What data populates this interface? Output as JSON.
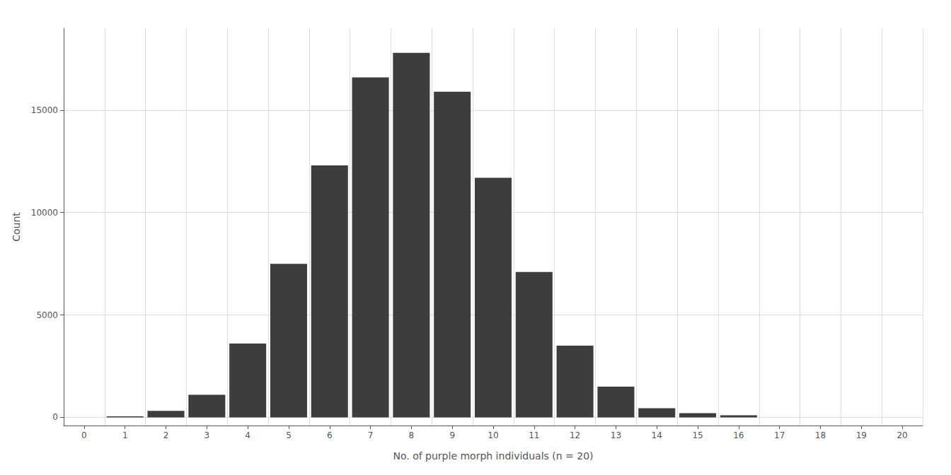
{
  "chart_data": {
    "type": "bar",
    "xlabel": "No. of purple morph individuals (n = 20)",
    "ylabel": "Count",
    "categories": [
      "0",
      "1",
      "2",
      "3",
      "4",
      "5",
      "6",
      "7",
      "8",
      "9",
      "10",
      "11",
      "12",
      "13",
      "14",
      "15",
      "16",
      "17",
      "18",
      "19",
      "20"
    ],
    "values": [
      0,
      50,
      320,
      1100,
      3600,
      7500,
      12300,
      16600,
      17800,
      15900,
      11700,
      7100,
      3500,
      1500,
      450,
      200,
      100,
      0,
      0,
      0,
      0
    ],
    "color": "#3d3d3d",
    "ylim": [
      -400,
      19000
    ],
    "yticks": [
      0,
      5000,
      10000,
      15000
    ],
    "grid": true
  }
}
